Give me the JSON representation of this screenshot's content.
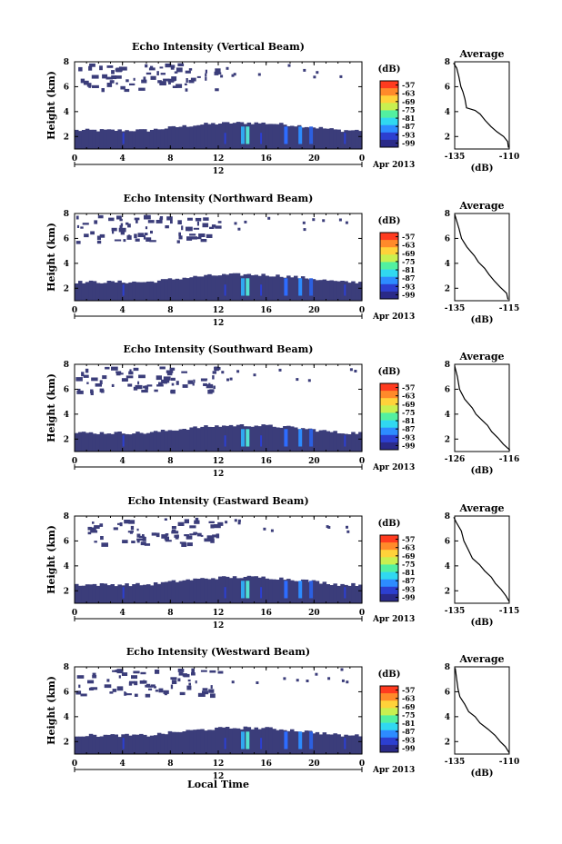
{
  "page": {
    "xlabel": "Local Time",
    "date_label": "Apr 2013",
    "noon_label": "12",
    "avg_title": "Average",
    "avg_xlabel": "(dB)",
    "cb_label": "(dB)",
    "ylabel": "Height (km)"
  },
  "chart_data": [
    {
      "type": "heatmap",
      "title": "Echo Intensity (Vertical Beam)",
      "xlabel": "",
      "ylabel": "Height (km)",
      "xlim": [
        0,
        24
      ],
      "ylim": [
        1,
        8
      ],
      "xticks": [
        "0",
        "4",
        "8",
        "12",
        "16",
        "20",
        "0"
      ],
      "yticks": [
        "2",
        "4",
        "6",
        "8"
      ],
      "colorbar": {
        "label": "(dB)",
        "ticks": [
          "-57",
          "-63",
          "-69",
          "-75",
          "-81",
          "-87",
          "-93",
          "-99"
        ]
      },
      "average": {
        "title": "Average",
        "xlabel": "(dB)",
        "xticks": [
          "-135",
          "-110"
        ],
        "yticks": [
          "2",
          "4",
          "6",
          "8"
        ],
        "profile": [
          [
            -110,
            1.1
          ],
          [
            -111,
            1.6
          ],
          [
            -113,
            2.0
          ],
          [
            -116,
            2.4
          ],
          [
            -118,
            2.8
          ],
          [
            -121,
            3.3
          ],
          [
            -123,
            3.8
          ],
          [
            -126,
            4.1
          ],
          [
            -129,
            4.3
          ],
          [
            -130,
            5.0
          ],
          [
            -131,
            5.6
          ],
          [
            -132,
            6.0
          ],
          [
            -133,
            6.8
          ],
          [
            -134,
            7.5
          ],
          [
            -135,
            7.9
          ]
        ]
      },
      "date": "Apr 2013"
    },
    {
      "type": "heatmap",
      "title": "Echo Intensity (Northward Beam)",
      "xlabel": "",
      "ylabel": "Height (km)",
      "xlim": [
        0,
        24
      ],
      "ylim": [
        1,
        8
      ],
      "xticks": [
        "0",
        "4",
        "8",
        "12",
        "16",
        "20",
        "0"
      ],
      "yticks": [
        "2",
        "4",
        "6",
        "8"
      ],
      "colorbar": {
        "label": "(dB)",
        "ticks": [
          "-57",
          "-63",
          "-69",
          "-75",
          "-81",
          "-87",
          "-93",
          "-99"
        ]
      },
      "average": {
        "title": "Average",
        "xlabel": "(dB)",
        "xticks": [
          "-135",
          "-115"
        ],
        "yticks": [
          "2",
          "4",
          "6",
          "8"
        ],
        "profile": [
          [
            -115,
            1.1
          ],
          [
            -116,
            1.6
          ],
          [
            -118,
            2.1
          ],
          [
            -120,
            2.6
          ],
          [
            -122,
            3.1
          ],
          [
            -124,
            3.6
          ],
          [
            -126,
            4.1
          ],
          [
            -128,
            4.6
          ],
          [
            -130,
            5.3
          ],
          [
            -132,
            6.0
          ],
          [
            -133,
            6.8
          ],
          [
            -134,
            7.5
          ],
          [
            -135,
            7.9
          ]
        ]
      },
      "date": "Apr 2013"
    },
    {
      "type": "heatmap",
      "title": "Echo Intensity (Southward Beam)",
      "xlabel": "",
      "ylabel": "Height (km)",
      "xlim": [
        0,
        24
      ],
      "ylim": [
        1,
        8
      ],
      "xticks": [
        "0",
        "4",
        "8",
        "12",
        "16",
        "20",
        "0"
      ],
      "yticks": [
        "2",
        "4",
        "6",
        "8"
      ],
      "colorbar": {
        "label": "(dB)",
        "ticks": [
          "-57",
          "-63",
          "-69",
          "-75",
          "-81",
          "-87",
          "-93",
          "-99"
        ]
      },
      "average": {
        "title": "Average",
        "xlabel": "(dB)",
        "xticks": [
          "-126",
          "-116"
        ],
        "yticks": [
          "2",
          "4",
          "6",
          "8"
        ],
        "profile": [
          [
            -116,
            1.1
          ],
          [
            -117,
            1.6
          ],
          [
            -118,
            2.1
          ],
          [
            -119,
            2.6
          ],
          [
            -120,
            3.1
          ],
          [
            -121,
            3.5
          ],
          [
            -122,
            4.0
          ],
          [
            -123,
            4.5
          ],
          [
            -124,
            5.2
          ],
          [
            -125,
            6.0
          ],
          [
            -125.5,
            7.0
          ],
          [
            -126,
            7.9
          ]
        ]
      },
      "date": "Apr 2013"
    },
    {
      "type": "heatmap",
      "title": "Echo Intensity (Eastward Beam)",
      "xlabel": "",
      "ylabel": "Height (km)",
      "xlim": [
        0,
        24
      ],
      "ylim": [
        1,
        8
      ],
      "xticks": [
        "0",
        "4",
        "8",
        "12",
        "16",
        "20",
        "0"
      ],
      "yticks": [
        "2",
        "4",
        "6",
        "8"
      ],
      "colorbar": {
        "label": "(dB)",
        "ticks": [
          "-57",
          "-63",
          "-69",
          "-75",
          "-81",
          "-87",
          "-93",
          "-99"
        ]
      },
      "average": {
        "title": "Average",
        "xlabel": "(dB)",
        "xticks": [
          "-135",
          "-115"
        ],
        "yticks": [
          "2",
          "4",
          "6",
          "8"
        ],
        "profile": [
          [
            -115,
            1.1
          ],
          [
            -116,
            1.6
          ],
          [
            -118,
            2.1
          ],
          [
            -120,
            2.6
          ],
          [
            -122,
            3.1
          ],
          [
            -124,
            3.6
          ],
          [
            -126,
            4.1
          ],
          [
            -128,
            4.6
          ],
          [
            -130,
            5.3
          ],
          [
            -132,
            6.0
          ],
          [
            -133,
            6.8
          ],
          [
            -134,
            7.5
          ],
          [
            -135,
            7.9
          ]
        ]
      },
      "date": "Apr 2013"
    },
    {
      "type": "heatmap",
      "title": "Echo Intensity (Westward Beam)",
      "xlabel": "Local Time",
      "ylabel": "Height (km)",
      "xlim": [
        0,
        24
      ],
      "ylim": [
        1,
        8
      ],
      "xticks": [
        "0",
        "4",
        "8",
        "12",
        "16",
        "20",
        "0"
      ],
      "yticks": [
        "2",
        "4",
        "6",
        "8"
      ],
      "colorbar": {
        "label": "(dB)",
        "ticks": [
          "-57",
          "-63",
          "-69",
          "-75",
          "-81",
          "-87",
          "-93",
          "-99"
        ]
      },
      "average": {
        "title": "Average",
        "xlabel": "(dB)",
        "xticks": [
          "-135",
          "-110"
        ],
        "yticks": [
          "2",
          "4",
          "6",
          "8"
        ],
        "profile": [
          [
            -110,
            1.1
          ],
          [
            -112,
            1.6
          ],
          [
            -114,
            2.0
          ],
          [
            -117,
            2.5
          ],
          [
            -120,
            3.0
          ],
          [
            -123,
            3.5
          ],
          [
            -126,
            4.0
          ],
          [
            -129,
            4.4
          ],
          [
            -131,
            5.0
          ],
          [
            -132,
            5.6
          ],
          [
            -133,
            6.2
          ],
          [
            -134,
            7.0
          ],
          [
            -135,
            7.9
          ]
        ]
      },
      "date": "Apr 2013"
    }
  ]
}
